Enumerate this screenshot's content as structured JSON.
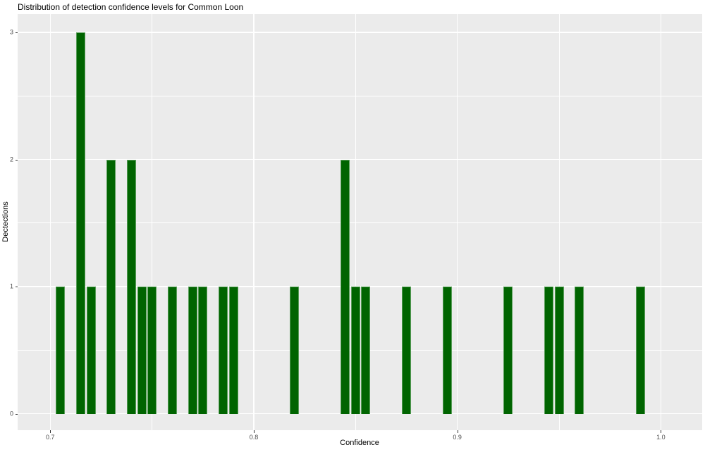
{
  "title": "Distribution of detection confidence levels for Common Loon",
  "chart_data": {
    "type": "bar",
    "subtype": "histogram",
    "title": "Distribution of detection confidence levels for Common Loon",
    "xlabel": "Confidence",
    "ylabel": "Dectections",
    "x_tick_values": [
      0.7,
      0.8,
      0.9,
      1.0
    ],
    "x_tick_labels": [
      "0.7",
      "0.8",
      "0.9",
      "1.0"
    ],
    "y_tick_values": [
      0,
      1,
      2,
      3
    ],
    "y_tick_labels": [
      "0",
      "1",
      "2",
      "3"
    ],
    "x_minor_gridlines": [
      0.75,
      0.85,
      0.95
    ],
    "y_minor_gridlines": [
      0.5,
      1.5,
      2.5
    ],
    "xlim": [
      0.684,
      1.0204
    ],
    "ylim": [
      -0.13,
      3.145
    ],
    "binwidth": 0.005,
    "grid": true,
    "legend": false,
    "bins": [
      {
        "x": 0.705,
        "count": 1
      },
      {
        "x": 0.715,
        "count": 3
      },
      {
        "x": 0.72,
        "count": 1
      },
      {
        "x": 0.73,
        "count": 2
      },
      {
        "x": 0.74,
        "count": 2
      },
      {
        "x": 0.745,
        "count": 1
      },
      {
        "x": 0.75,
        "count": 1
      },
      {
        "x": 0.76,
        "count": 1
      },
      {
        "x": 0.77,
        "count": 1
      },
      {
        "x": 0.775,
        "count": 1
      },
      {
        "x": 0.785,
        "count": 1
      },
      {
        "x": 0.79,
        "count": 1
      },
      {
        "x": 0.82,
        "count": 1
      },
      {
        "x": 0.845,
        "count": 2
      },
      {
        "x": 0.85,
        "count": 1
      },
      {
        "x": 0.855,
        "count": 1
      },
      {
        "x": 0.875,
        "count": 1
      },
      {
        "x": 0.895,
        "count": 1
      },
      {
        "x": 0.925,
        "count": 1
      },
      {
        "x": 0.945,
        "count": 1
      },
      {
        "x": 0.95,
        "count": 1
      },
      {
        "x": 0.96,
        "count": 1
      },
      {
        "x": 0.99,
        "count": 1
      }
    ],
    "colors": {
      "bar_fill": "#006400",
      "panel_background": "#ebebeb",
      "gridline": "#ffffff",
      "tick_text": "#4d4d4d",
      "axis_title_text": "#000000",
      "title_text": "#000000",
      "plot_background": "#ffffff"
    }
  }
}
